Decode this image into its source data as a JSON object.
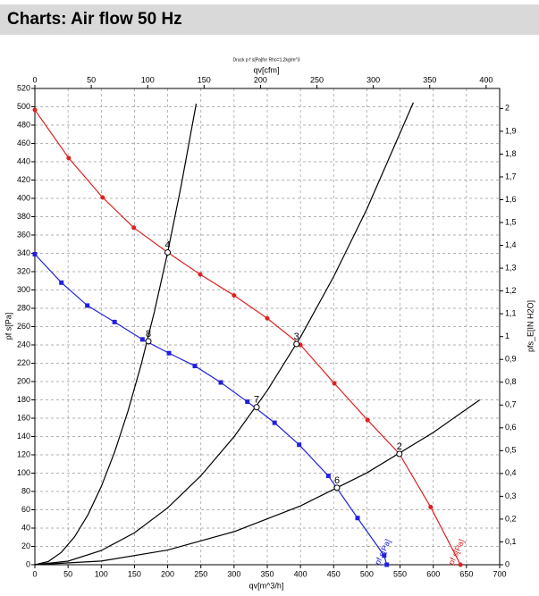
{
  "chart_data": {
    "type": "line",
    "title": "Charts: Air flow 50 Hz",
    "note": "Druck p f s[Pa]for Rho=1,2kg/m^3",
    "x_label": "qv[m^3/h]",
    "x2_label": "qv[cfm]",
    "y_label": "pf s[Pa]",
    "y2_label": "pfs_E[IN H2O]",
    "xlim": [
      0,
      700
    ],
    "xticks": [
      0,
      50,
      100,
      150,
      200,
      250,
      300,
      350,
      400,
      450,
      500,
      550,
      600,
      650,
      700
    ],
    "x2lim": [
      0,
      412
    ],
    "x2ticks": [
      0,
      50,
      100,
      150,
      200,
      250,
      300,
      350,
      400
    ],
    "ylim": [
      0,
      520
    ],
    "yticks": [
      0,
      20,
      40,
      60,
      80,
      100,
      120,
      140,
      160,
      180,
      200,
      220,
      240,
      260,
      280,
      300,
      320,
      340,
      360,
      380,
      400,
      420,
      440,
      460,
      480,
      500,
      520
    ],
    "y2lim": [
      0,
      2.0876
    ],
    "y2ticks": [
      0,
      {
        "value": 0.1,
        "label": "0,1"
      },
      {
        "value": 0.2,
        "label": "0,2"
      },
      {
        "value": 0.3,
        "label": "0,3"
      },
      {
        "value": 0.4,
        "label": "0,4"
      },
      {
        "value": 0.5,
        "label": "0,5"
      },
      {
        "value": 0.6,
        "label": "0,6"
      },
      {
        "value": 0.7,
        "label": "0,7"
      },
      {
        "value": 0.8,
        "label": "0,8"
      },
      {
        "value": 0.9,
        "label": "0,9"
      },
      1,
      {
        "value": 1.1,
        "label": "1,1"
      },
      {
        "value": 1.2,
        "label": "1,2"
      },
      {
        "value": 1.3,
        "label": "1,3"
      },
      {
        "value": 1.4,
        "label": "1,4"
      },
      {
        "value": 1.5,
        "label": "1,5"
      },
      {
        "value": 1.6,
        "label": "1,6"
      },
      {
        "value": 1.7,
        "label": "1,7"
      },
      {
        "value": 1.8,
        "label": "1,8"
      },
      {
        "value": 1.9,
        "label": "1,9"
      },
      2
    ],
    "grid": true,
    "series": [
      {
        "name": "pf s[Pa]",
        "color": "#e02020",
        "marker": "circle",
        "x": [
          0,
          51,
          102,
          149,
          200,
          249,
          300,
          350,
          400,
          451,
          501,
          549,
          596,
          641
        ],
        "values": [
          496.6,
          444,
          401,
          368,
          341,
          317,
          294,
          269,
          240,
          198,
          158,
          121,
          63,
          0
        ]
      },
      {
        "name": "pf s[Pa]",
        "color": "#2020e0",
        "marker": "square",
        "x": [
          0,
          40,
          79,
          120,
          162,
          202,
          241,
          280,
          320,
          361,
          398,
          442,
          486,
          526,
          530
        ],
        "values": [
          339,
          308,
          283,
          265,
          246,
          231,
          217,
          199,
          178,
          155,
          131,
          97,
          51,
          10,
          0
        ]
      },
      {
        "color": "#000000",
        "x": [
          0,
          20,
          40,
          60,
          80,
          100,
          120,
          140,
          160,
          180,
          200,
          220,
          243
        ],
        "values": [
          0,
          3.4,
          13.6,
          30.7,
          54.6,
          85.3,
          122.8,
          167.1,
          218.2,
          276.2,
          341,
          412.6,
          503.4
        ]
      },
      {
        "color": "#000000",
        "x": [
          0,
          50,
          100,
          150,
          200,
          250,
          300,
          350,
          400,
          450,
          500,
          570
        ],
        "values": [
          0,
          3.9,
          15.5,
          34.9,
          62.1,
          97.1,
          139.8,
          190.2,
          248.5,
          314.5,
          388.3,
          504.6
        ]
      },
      {
        "color": "#000000",
        "x": [
          0,
          100,
          200,
          300,
          400,
          500,
          600,
          670
        ],
        "values": [
          0,
          4.0,
          16.0,
          36.1,
          64.2,
          100.3,
          144.4,
          180
        ]
      }
    ],
    "points": [
      {
        "label": "4",
        "x": 200,
        "y": 341
      },
      {
        "label": "8",
        "x": 171,
        "y": 244
      },
      {
        "label": "3",
        "x": 394,
        "y": 241
      },
      {
        "label": "7",
        "x": 334,
        "y": 172
      },
      {
        "label": "2",
        "x": 549,
        "y": 121
      },
      {
        "label": "6",
        "x": 455,
        "y": 84
      }
    ]
  }
}
